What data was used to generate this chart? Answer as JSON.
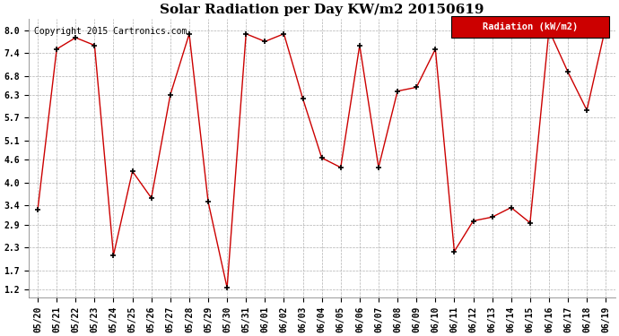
{
  "title": "Solar Radiation per Day KW/m2 20150619",
  "copyright_text": "Copyright 2015 Cartronics.com",
  "legend_label": "Radiation (kW/m2)",
  "dates": [
    "05/20",
    "05/21",
    "05/22",
    "05/23",
    "05/24",
    "05/25",
    "05/26",
    "05/27",
    "05/28",
    "05/29",
    "05/30",
    "05/31",
    "06/01",
    "06/02",
    "06/03",
    "06/04",
    "06/05",
    "06/06",
    "06/07",
    "06/08",
    "06/09",
    "06/10",
    "06/11",
    "06/12",
    "06/13",
    "06/14",
    "06/15",
    "06/16",
    "06/17",
    "06/18",
    "06/19"
  ],
  "values": [
    3.3,
    7.5,
    7.8,
    7.6,
    2.1,
    4.3,
    3.6,
    6.3,
    7.9,
    3.5,
    1.25,
    7.9,
    7.7,
    7.9,
    6.2,
    4.65,
    4.4,
    7.6,
    4.4,
    6.4,
    6.5,
    7.5,
    2.2,
    3.0,
    3.1,
    3.35,
    2.95,
    8.0,
    6.9,
    5.9,
    8.1
  ],
  "line_color": "#cc0000",
  "marker": "+",
  "marker_color": "#000000",
  "bg_color": "#ffffff",
  "grid_color": "#b0b0b0",
  "legend_bg": "#cc0000",
  "legend_text_color": "#ffffff",
  "ylim": [
    1.0,
    8.3
  ],
  "yticks": [
    1.2,
    1.7,
    2.3,
    2.9,
    3.4,
    4.0,
    4.6,
    5.1,
    5.7,
    6.3,
    6.8,
    7.4,
    8.0
  ],
  "title_fontsize": 11,
  "copyright_fontsize": 7,
  "tick_fontsize": 7,
  "legend_fontsize": 7.5
}
